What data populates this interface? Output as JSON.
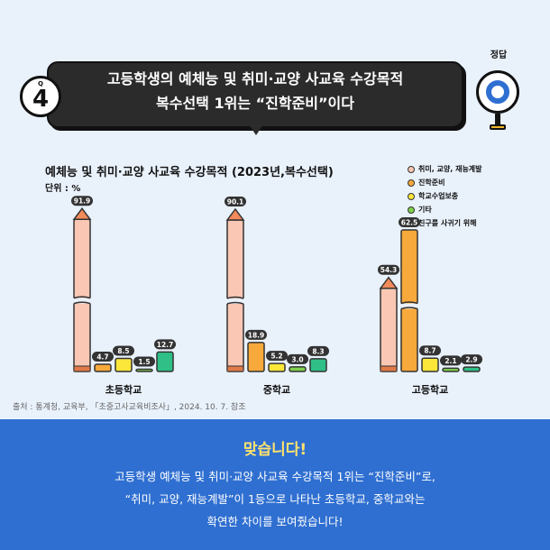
{
  "question": {
    "badge_q": "Q",
    "badge_number": "4",
    "line1": "고등학생의 예체능 및 취미·교양 사교육 수강목적",
    "line2": "복수선택 1위는 “진학준비”이다"
  },
  "answer_sign": {
    "label": "정답"
  },
  "source": "출처 : 통계청, 교육부, 「초중고사교육비조사」, 2024. 10. 7. 참조",
  "answer": {
    "title": "맞습니다!",
    "line1": "고등학생 예체능 및 취미·교양 사교육 수강목적 1위는 “진학준비”로,",
    "line2": "“취미, 교양, 재능계발”이 1등으로 나타난 초등학교, 중학교와는",
    "line3": "확연한 차이를 보여줬습니다!"
  },
  "colors": {
    "background": "#e9f1fb",
    "panel": "#2f6fd1",
    "answer_title": "#ffe36e"
  },
  "chart_data": {
    "type": "bar",
    "title": "예체능 및 취미·교양 사교육 수강목적 (2023년,복수선택)",
    "unit": "단위 : %",
    "categories": [
      "초등학교",
      "중학교",
      "고등학교"
    ],
    "series": [
      {
        "name": "취미, 교양, 재능계발",
        "color": "#f9c7b4",
        "values": [
          91.9,
          90.1,
          54.3
        ]
      },
      {
        "name": "진학준비",
        "color": "#f7a93b",
        "values": [
          4.7,
          18.9,
          62.5
        ]
      },
      {
        "name": "학교수업보충",
        "color": "#fbe63a",
        "values": [
          8.5,
          5.2,
          8.7
        ]
      },
      {
        "name": "기타",
        "color": "#7fd14d",
        "values": [
          1.5,
          3.0,
          2.1
        ]
      },
      {
        "name": "친구를 사귀기 위해",
        "color": "#2fbf87",
        "values": [
          12.7,
          8.3,
          2.9
        ]
      }
    ],
    "value_labels": [
      [
        "91.9",
        "4.7",
        "8.5",
        "1.5",
        "12.7"
      ],
      [
        "90.1",
        "18.9",
        "5.2",
        "3.0",
        "8.3"
      ],
      [
        "54.3",
        "62.5",
        "8.7",
        "2.1",
        "2.9"
      ]
    ],
    "ylim": [
      0,
      100
    ],
    "axis_break": true,
    "grid": false,
    "legend_position": "top-right"
  }
}
